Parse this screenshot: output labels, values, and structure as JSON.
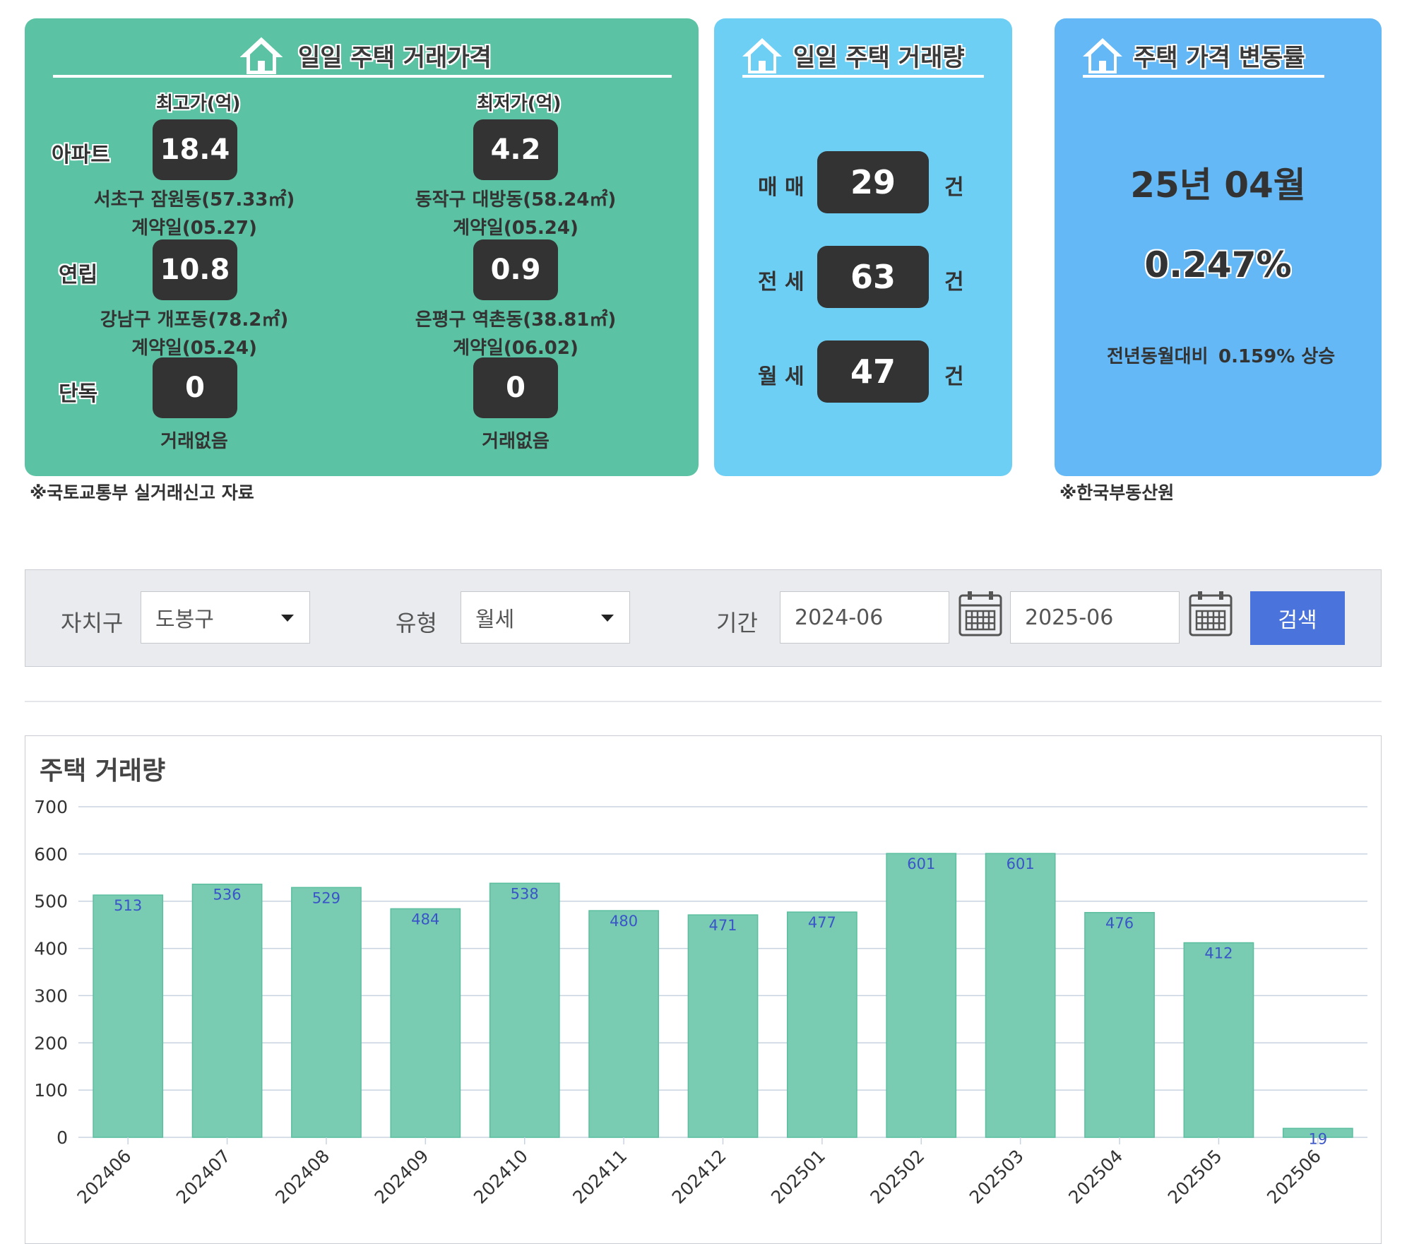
{
  "price_panel": {
    "title": "일일 주택 거래가격",
    "max_header": "최고가(억)",
    "min_header": "최저가(억)",
    "rows": [
      {
        "type": "아파트",
        "max": "18.4",
        "max_loc": "서초구 잠원동(57.33㎡)",
        "max_date": "계약일(05.27)",
        "min": "4.2",
        "min_loc": "동작구 대방동(58.24㎡)",
        "min_date": "계약일(05.24)"
      },
      {
        "type": "연립",
        "max": "10.8",
        "max_loc": "강남구 개포동(78.2㎡)",
        "max_date": "계약일(05.24)",
        "min": "0.9",
        "min_loc": "은평구 역촌동(38.81㎡)",
        "min_date": "계약일(06.02)"
      },
      {
        "type": "단독",
        "max": "0",
        "max_loc": "거래없음",
        "min": "0",
        "min_loc": "거래없음"
      }
    ],
    "note": "※국토교통부 실거래신고 자료"
  },
  "volume_panel": {
    "title": "일일 주택 거래량",
    "unit": "건",
    "items": [
      {
        "label": "매 매",
        "value": "29"
      },
      {
        "label": "전 세",
        "value": "63"
      },
      {
        "label": "월 세",
        "value": "47"
      }
    ]
  },
  "rate_panel": {
    "title": "주택 가격 변동률",
    "period": "25년 04월",
    "rate": "0.247%",
    "compare_label": "전년동월대비",
    "compare_value": "0.159% 상승",
    "note": "※한국부동산원"
  },
  "search": {
    "district_label": "자치구",
    "district_value": "도봉구",
    "type_label": "유형",
    "type_value": "월세",
    "period_label": "기간",
    "start": "2024-06",
    "end": "2025-06",
    "button": "검색"
  },
  "colors": {
    "bar": "#79cbb2",
    "bar_stroke": "#5bbf9f",
    "label": "#3a55c8",
    "grid": "#c8d3e0"
  },
  "chart_data": {
    "type": "bar",
    "title": "주택 거래량",
    "categories": [
      "202406",
      "202407",
      "202408",
      "202409",
      "202410",
      "202411",
      "202412",
      "202501",
      "202502",
      "202503",
      "202504",
      "202505",
      "202506"
    ],
    "values": [
      513,
      536,
      529,
      484,
      538,
      480,
      471,
      477,
      601,
      601,
      476,
      412,
      19
    ],
    "ylim": [
      0,
      700
    ],
    "yticks": [
      0,
      100,
      200,
      300,
      400,
      500,
      600,
      700
    ],
    "grid": true
  }
}
